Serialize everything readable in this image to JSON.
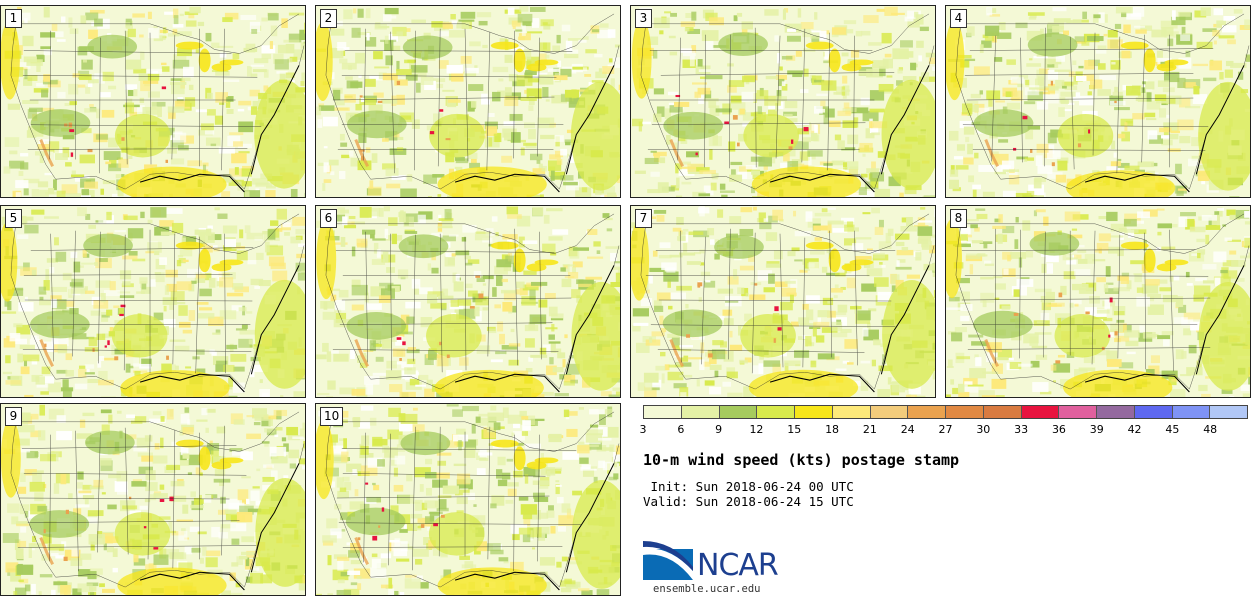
{
  "title": "10-m wind speed (kts) postage stamp",
  "init_label": " Init: Sun 2018-06-24 00 UTC",
  "valid_label": "Valid: Sun 2018-06-24 15 UTC",
  "logo": {
    "text": "NCAR",
    "url": "ensemble.ucar.edu"
  },
  "panels": [
    {
      "label": "1"
    },
    {
      "label": "2"
    },
    {
      "label": "3"
    },
    {
      "label": "4"
    },
    {
      "label": "5"
    },
    {
      "label": "6"
    },
    {
      "label": "7"
    },
    {
      "label": "8"
    },
    {
      "label": "9"
    },
    {
      "label": "10"
    }
  ],
  "colorbar": {
    "ticks": [
      "3",
      "6",
      "9",
      "12",
      "15",
      "18",
      "21",
      "24",
      "27",
      "30",
      "33",
      "36",
      "39",
      "42",
      "45",
      "48"
    ],
    "range": [
      3,
      51
    ],
    "colors": [
      "#f4f9d6",
      "#e4f1a6",
      "#a6cb5e",
      "#d8ea4c",
      "#f7e61a",
      "#fde97a",
      "#f3cc7c",
      "#eaa24f",
      "#e18943",
      "#d97b41",
      "#e8133f",
      "#e0609e",
      "#94699f",
      "#5e68f0",
      "#7f93f5",
      "#b1c7f6"
    ]
  },
  "map_colors": {
    "background": "#f4f9d6",
    "light_green": "#e4f1a6",
    "green": "#a6cb5e",
    "yellow_green": "#d8ea4c",
    "yellow": "#f7e61a",
    "light_yellow": "#fde97a",
    "orange": "#eaa24f",
    "red": "#e8133f",
    "white": "#ffffff"
  }
}
